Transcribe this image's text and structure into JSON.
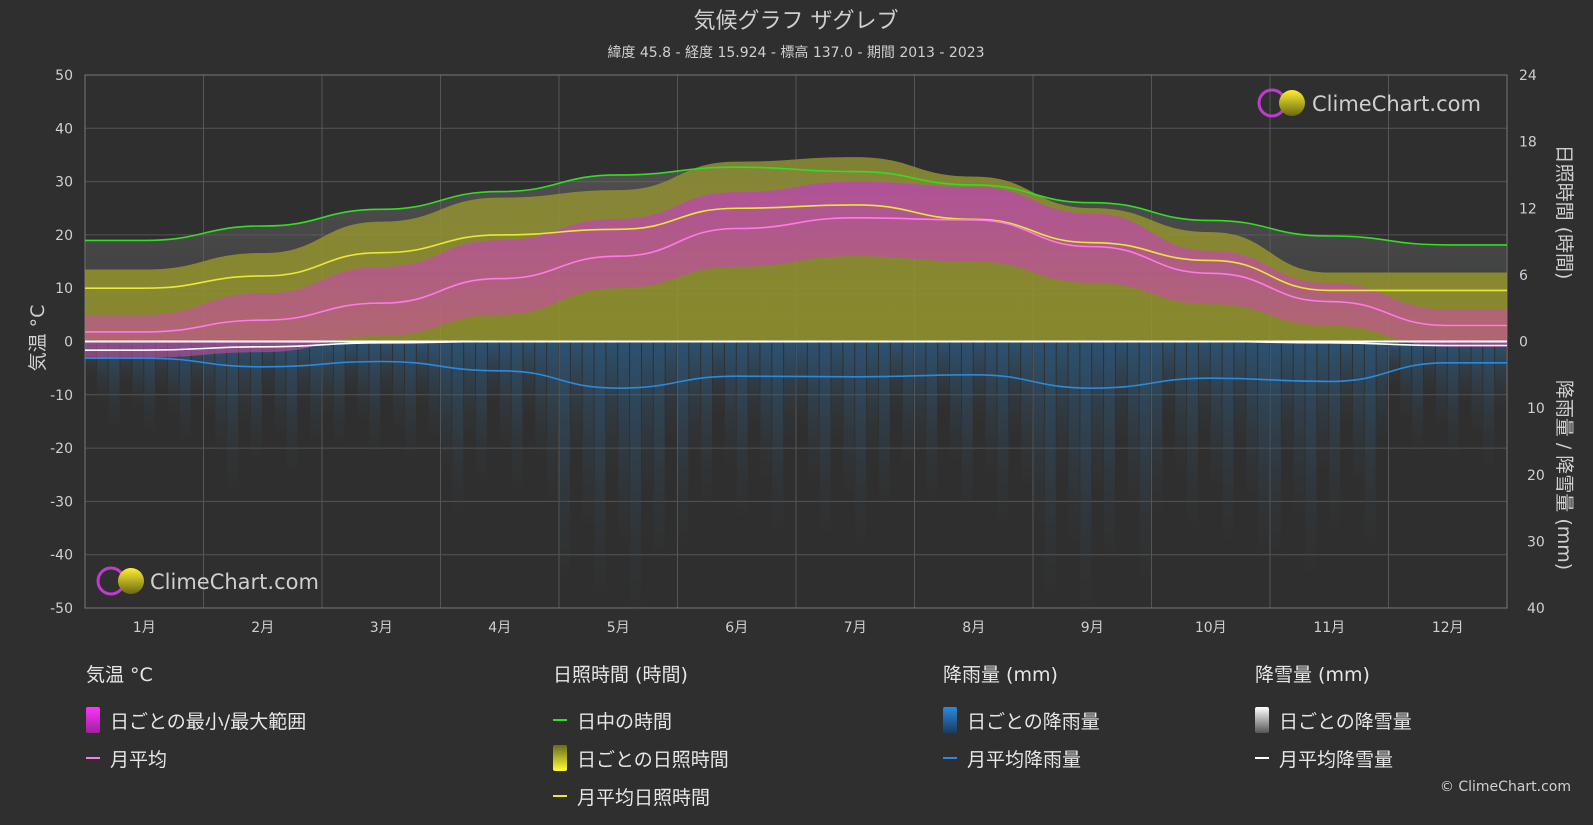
{
  "header": {
    "title": "気候グラフ ザグレブ",
    "subtitle": "緯度 45.8 - 経度 15.924 - 標高 137.0 - 期間 2013 - 2023"
  },
  "brand": {
    "logo_text": "ClimeChart.com",
    "copyright": "© ClimeChart.com"
  },
  "colors": {
    "background": "#2f2f2f",
    "grid": "#5a5a5a",
    "daylight": "#33dd22",
    "sunshine_line": "#e8e83a",
    "sunshine_fill": "#9a9a30",
    "temp_range": "#d23fd2",
    "temp_mean": "#ff7ae8",
    "rain": "#2a8ae0",
    "snow": "#ffffff",
    "brand": "#2a9be8"
  },
  "chart_data": {
    "type": "line",
    "categories": [
      "1月",
      "2月",
      "3月",
      "4月",
      "5月",
      "6月",
      "7月",
      "8月",
      "9月",
      "10月",
      "11月",
      "12月"
    ],
    "axes": {
      "left": {
        "label": "気温 °C",
        "ticks": [
          50,
          40,
          30,
          20,
          10,
          0,
          -10,
          -20,
          -30,
          -40,
          -50
        ],
        "range": [
          -50,
          50
        ]
      },
      "right_top": {
        "label": "日照時間 (時間)",
        "ticks": [
          24,
          18,
          12,
          6,
          0
        ],
        "range": [
          0,
          24
        ]
      },
      "right_bottom": {
        "label": "降雨量 / 降雪量 (mm)",
        "ticks": [
          0,
          10,
          20,
          30,
          40
        ],
        "range": [
          0,
          40
        ]
      }
    },
    "grid": true,
    "series": {
      "daylight_hours": [
        9.1,
        10.4,
        11.9,
        13.5,
        15.0,
        15.7,
        15.3,
        14.1,
        12.5,
        10.9,
        9.5,
        8.7
      ],
      "sunshine_hours": [
        4.8,
        5.9,
        8.0,
        9.6,
        10.1,
        12.0,
        12.3,
        11.0,
        8.9,
        7.3,
        4.6,
        4.6
      ],
      "temp_mean_c": [
        1.8,
        4.0,
        7.2,
        11.8,
        16.0,
        21.2,
        23.2,
        22.8,
        17.8,
        12.8,
        7.5,
        3.0
      ],
      "temp_max_c": [
        5,
        9,
        14,
        19,
        23,
        28,
        30,
        29,
        24,
        17,
        11,
        6
      ],
      "temp_min_c": [
        -3,
        -2,
        1,
        5,
        10,
        14,
        16,
        15,
        11,
        7,
        3,
        -1
      ],
      "rain_mm": [
        2.5,
        3.8,
        3.0,
        4.4,
        7.0,
        5.2,
        5.3,
        5.0,
        7.0,
        5.5,
        6.0,
        3.2
      ],
      "snow_mm": [
        1.3,
        0.8,
        0.2,
        0.0,
        0.0,
        0.0,
        0.0,
        0.0,
        0.0,
        0.0,
        0.2,
        0.6
      ]
    }
  },
  "legend": {
    "temp": {
      "title": "気温 °C",
      "items": [
        "日ごとの最小/最大範囲",
        "月平均"
      ]
    },
    "sun": {
      "title": "日照時間 (時間)",
      "items": [
        "日中の時間",
        "日ごとの日照時間",
        "月平均日照時間"
      ]
    },
    "rain": {
      "title": "降雨量 (mm)",
      "items": [
        "日ごとの降雨量",
        "月平均降雨量"
      ]
    },
    "snow": {
      "title": "降雪量 (mm)",
      "items": [
        "日ごとの降雪量",
        "月平均降雪量"
      ]
    }
  }
}
